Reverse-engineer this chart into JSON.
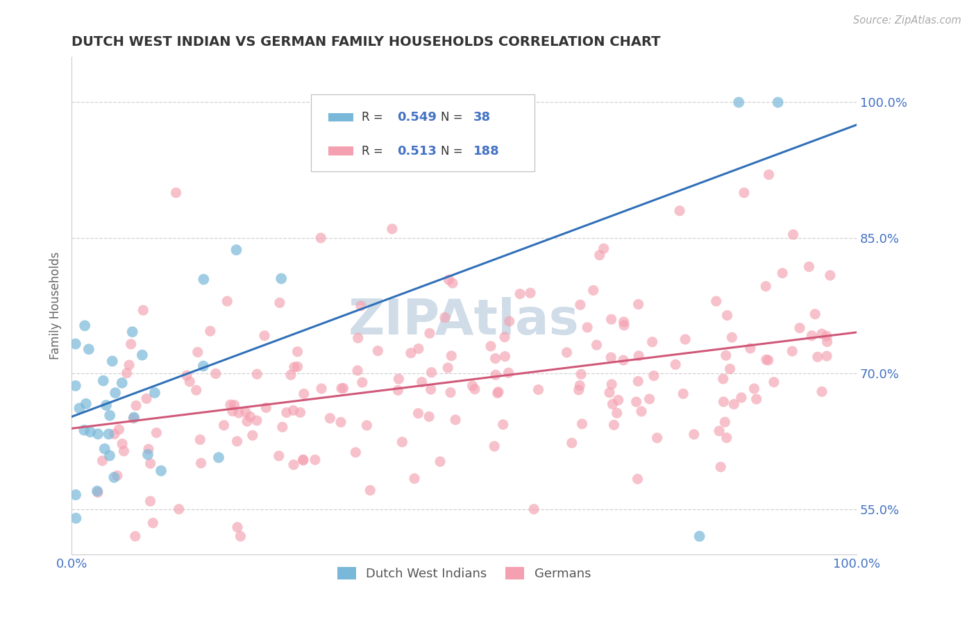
{
  "title": "DUTCH WEST INDIAN VS GERMAN FAMILY HOUSEHOLDS CORRELATION CHART",
  "source": "Source: ZipAtlas.com",
  "ylabel_label": "Family Households",
  "legend_labels": [
    "Dutch West Indians",
    "Germans"
  ],
  "r_blue": 0.549,
  "n_blue": 38,
  "r_pink": 0.513,
  "n_pink": 188,
  "blue_color": "#7ab8d9",
  "pink_color": "#f4a0b0",
  "blue_line_color": "#3070b8",
  "pink_line_color": "#d05878",
  "watermark_color": "#d0dce8",
  "background_color": "#ffffff",
  "grid_color": "#cccccc",
  "xmin": 0.0,
  "xmax": 100.0,
  "ymin": 50.0,
  "ymax": 105.0,
  "yticks": [
    55.0,
    70.0,
    85.0,
    100.0
  ]
}
